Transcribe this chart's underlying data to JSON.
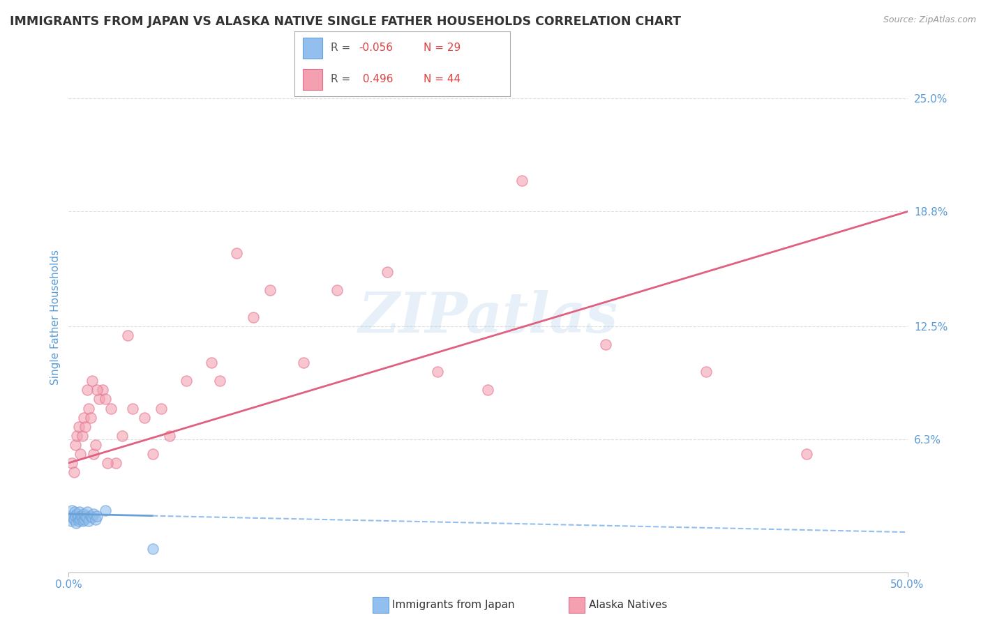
{
  "title": "IMMIGRANTS FROM JAPAN VS ALASKA NATIVE SINGLE FATHER HOUSEHOLDS CORRELATION CHART",
  "source_text": "Source: ZipAtlas.com",
  "ylabel": "Single Father Households",
  "xlim": [
    0.0,
    50.0
  ],
  "ylim": [
    -1.0,
    27.0
  ],
  "y_tick_vals_right": [
    6.3,
    12.5,
    18.8,
    25.0
  ],
  "y_tick_labels_right": [
    "6.3%",
    "12.5%",
    "18.8%",
    "25.0%"
  ],
  "legend_label1": "Immigrants from Japan",
  "legend_label2": "Alaska Natives",
  "blue_color": "#92BFED",
  "blue_edge_color": "#6AA0D8",
  "pink_color": "#F4A0B0",
  "pink_edge_color": "#E07090",
  "pink_line_color": "#E06080",
  "title_color": "#333333",
  "axis_label_color": "#5B9BD5",
  "watermark": "ZIPatlas",
  "blue_scatter_x": [
    0.1,
    0.15,
    0.2,
    0.25,
    0.3,
    0.35,
    0.4,
    0.45,
    0.5,
    0.55,
    0.6,
    0.65,
    0.7,
    0.75,
    0.8,
    0.85,
    0.9,
    0.95,
    1.0,
    1.05,
    1.1,
    1.2,
    1.3,
    1.4,
    1.5,
    1.6,
    1.7,
    2.2,
    5.0
  ],
  "blue_scatter_y": [
    2.1,
    1.8,
    2.4,
    2.0,
    1.9,
    2.3,
    2.1,
    1.7,
    2.2,
    2.0,
    1.8,
    2.3,
    1.9,
    2.1,
    2.0,
    1.8,
    2.2,
    1.9,
    2.1,
    2.0,
    2.3,
    1.8,
    2.1,
    2.0,
    2.2,
    1.9,
    2.1,
    2.4,
    0.3
  ],
  "pink_scatter_x": [
    0.2,
    0.3,
    0.4,
    0.5,
    0.6,
    0.7,
    0.8,
    0.9,
    1.0,
    1.1,
    1.2,
    1.3,
    1.4,
    1.5,
    1.6,
    1.8,
    2.0,
    2.2,
    2.5,
    2.8,
    3.2,
    3.8,
    4.5,
    5.5,
    7.0,
    8.5,
    11.0,
    14.0,
    19.0,
    27.0,
    32.0,
    38.0,
    44.0,
    5.0,
    6.0,
    9.0,
    12.0,
    16.0,
    22.0,
    2.3,
    1.7,
    3.5,
    10.0,
    25.0
  ],
  "pink_scatter_y": [
    5.0,
    4.5,
    6.0,
    6.5,
    7.0,
    5.5,
    6.5,
    7.5,
    7.0,
    9.0,
    8.0,
    7.5,
    9.5,
    5.5,
    6.0,
    8.5,
    9.0,
    8.5,
    8.0,
    5.0,
    6.5,
    8.0,
    7.5,
    8.0,
    9.5,
    10.5,
    13.0,
    10.5,
    15.5,
    20.5,
    11.5,
    10.0,
    5.5,
    5.5,
    6.5,
    9.5,
    14.5,
    14.5,
    10.0,
    5.0,
    9.0,
    12.0,
    16.5,
    9.0
  ],
  "blue_line_x0": 0.0,
  "blue_line_x1": 50.0,
  "blue_line_y0": 2.2,
  "blue_line_y1": 1.2,
  "blue_solid_end": 5.0,
  "pink_line_x0": 0.0,
  "pink_line_x1": 50.0,
  "pink_line_y0": 5.0,
  "pink_line_y1": 18.8,
  "grid_color": "#DDDDDD",
  "background_color": "#FFFFFF"
}
